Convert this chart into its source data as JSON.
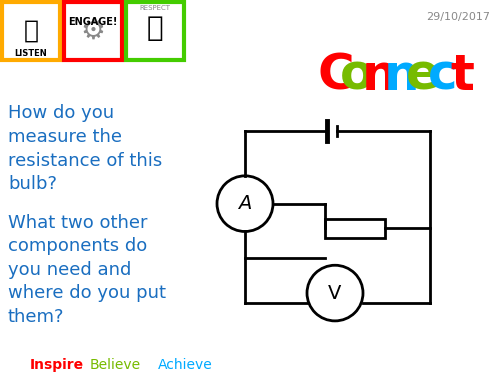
{
  "date_text": "29/10/2017",
  "connect_letters": [
    {
      "char": "C",
      "color": "#ff0000"
    },
    {
      "char": "o",
      "color": "#77bb00"
    },
    {
      "char": "n",
      "color": "#ff0000"
    },
    {
      "char": "n",
      "color": "#00aaff"
    },
    {
      "char": "e",
      "color": "#77bb00"
    },
    {
      "char": "c",
      "color": "#00aaff"
    },
    {
      "char": "t",
      "color": "#ff0000"
    }
  ],
  "question1": "How do you\nmeasure the\nresistance of this\nbulb?",
  "question2": "What two other\ncomponents do\nyou need and\nwhere do you put\nthem?",
  "footer_inspire": "Inspire",
  "footer_believe": "Believe",
  "footer_achieve": "Achieve",
  "footer_inspire_color": "#ff0000",
  "footer_believe_color": "#77bb00",
  "footer_achieve_color": "#00aaff",
  "text_color": "#1a6ec0",
  "bg_color": "#ffffff",
  "circuit_lw": 2.0
}
